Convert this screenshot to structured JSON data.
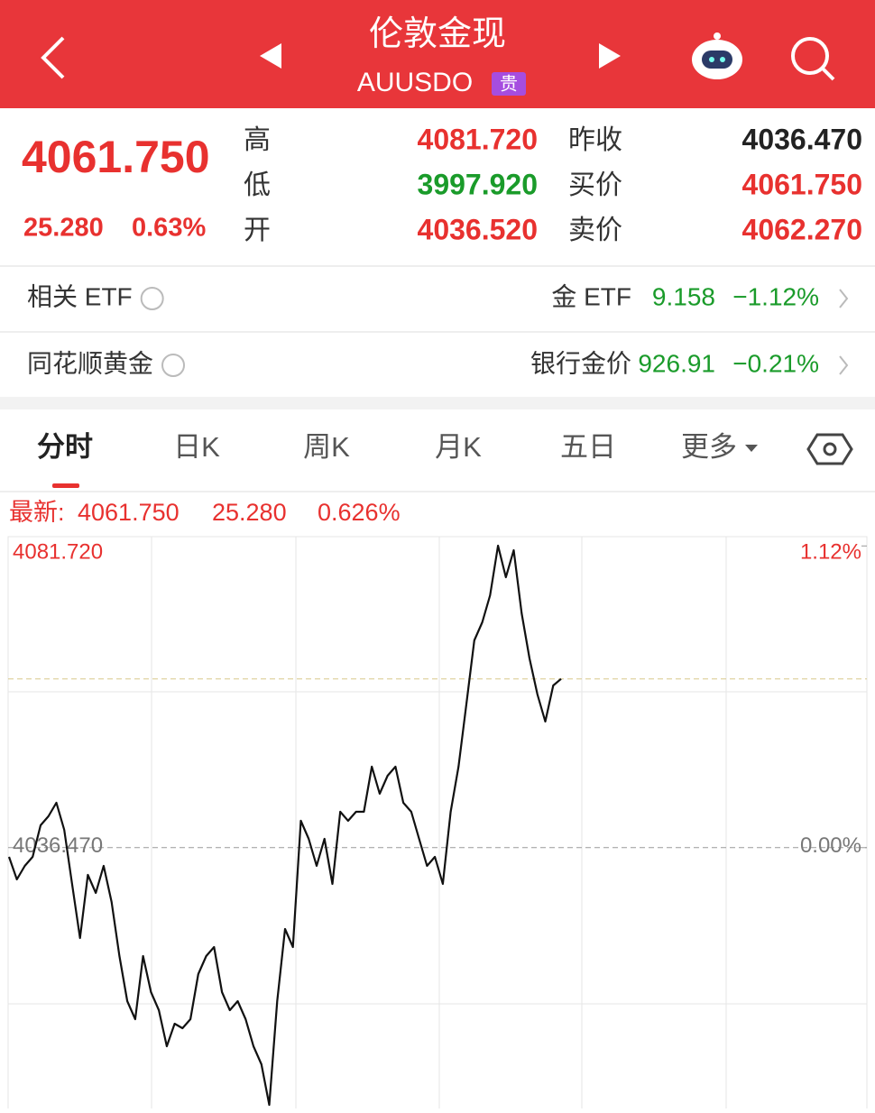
{
  "header": {
    "title": "伦敦金现",
    "code": "AUUSDO",
    "badge": "贵"
  },
  "quote": {
    "price": "4061.750",
    "change": "25.280",
    "change_pct": "0.63%",
    "rows": [
      [
        "高",
        "4081.720",
        "昨收",
        "4036.470"
      ],
      [
        "低",
        "3997.920",
        "买价",
        "4061.750"
      ],
      [
        "开",
        "4036.520",
        "卖价",
        "4062.270"
      ]
    ]
  },
  "links": [
    {
      "label": "相关 ETF",
      "name": "金 ETF",
      "value": "9.158",
      "change": "−1.12%"
    },
    {
      "label": "同花顺黄金",
      "name": "银行金价",
      "value": "926.91",
      "change": "−0.21%"
    }
  ],
  "tabs": [
    "分时",
    "日K",
    "周K",
    "月K",
    "五日",
    "更多"
  ],
  "latest": {
    "label": "最新:",
    "price": "4061.750",
    "change": "25.280",
    "change_pct": "0.626%"
  },
  "chart_data": {
    "type": "line",
    "ylim": [
      3997.92,
      4081.72
    ],
    "yticks": [
      {
        "value": 4081.72,
        "label": "4081.720"
      },
      {
        "value": 4036.47,
        "label": "4036.470"
      }
    ],
    "y2lim": [
      -0.955,
      1.121
    ],
    "y2ticks": [
      {
        "value": 1.12,
        "label": "1.12%"
      },
      {
        "value": 0,
        "label": "0.00%"
      }
    ],
    "series": [
      {
        "color": "#111111",
        "values": [
          4035.09,
          4031.71,
          4033.74,
          4035.09,
          4039.82,
          4041.17,
          4043.2,
          4039.14,
          4031.03,
          4022.93,
          4032.39,
          4029.68,
          4033.74,
          4028.33,
          4020.22,
          4013.46,
          4010.76,
          4020.22,
          4014.82,
          4012.11,
          4006.71,
          4010.09,
          4009.41,
          4010.76,
          4017.52,
          4020.22,
          4021.57,
          4014.82,
          4012.11,
          4013.46,
          4010.76,
          4006.71,
          4004.0,
          3997.92,
          4013.46,
          4024.28,
          4021.57,
          4040.5,
          4037.79,
          4033.74,
          4037.79,
          4031.03,
          4041.85,
          4040.5,
          4041.85,
          4041.85,
          4048.61,
          4044.55,
          4047.25,
          4048.61,
          4043.2,
          4041.85,
          4037.79,
          4033.74,
          4035.09,
          4031.03,
          4041.85,
          4048.61,
          4058.07,
          4067.53,
          4070.23,
          4074.29,
          4081.72,
          4076.99,
          4081.04,
          4071.58,
          4064.82,
          4059.42,
          4055.36,
          4060.77,
          4061.75
        ]
      }
    ]
  }
}
